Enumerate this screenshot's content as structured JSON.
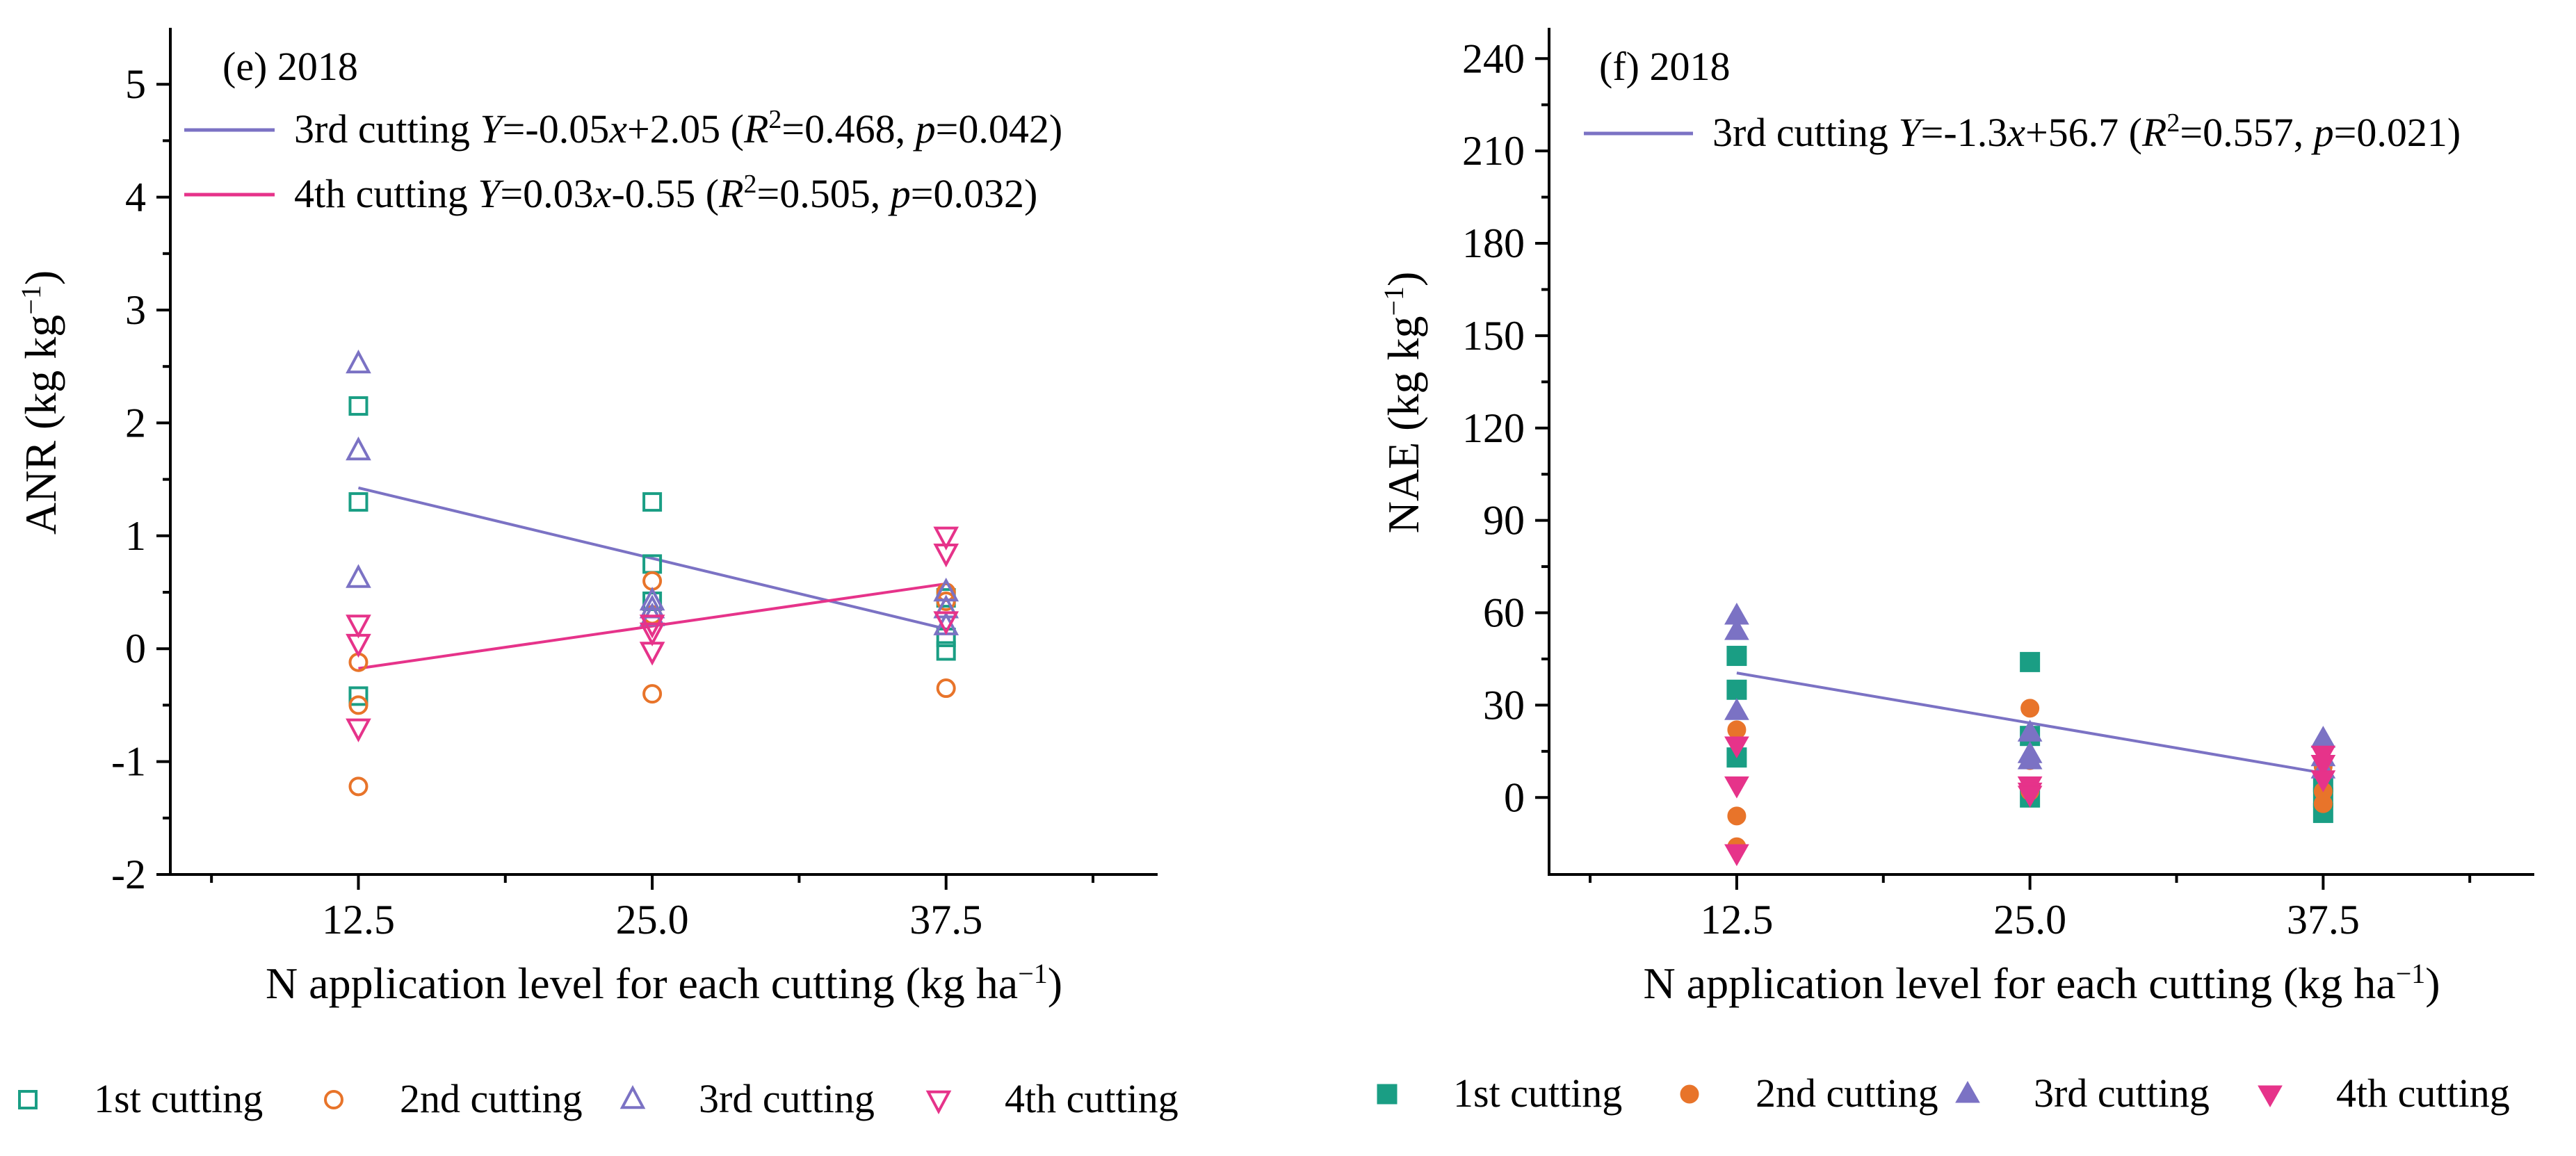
{
  "chart_data": [
    {
      "type": "scatter",
      "panel_label": "(e) 2018",
      "ylabel": "ANR (kg kg",
      "ylabel_sup": "−1",
      "ylabel_close": ")",
      "xlabel": "N application level for each cutting (kg ha",
      "xlabel_sup": "−1",
      "xlabel_close": ")",
      "xlim": [
        4.5,
        46.5
      ],
      "ylim": [
        -2,
        5.5
      ],
      "xticks": [
        12.5,
        25.0,
        37.5
      ],
      "xtick_labels": [
        "12.5",
        "25.0",
        "37.5"
      ],
      "yticks": [
        -2,
        -1,
        0,
        1,
        2,
        3,
        4,
        5
      ],
      "ytick_labels": [
        "-2",
        "-1",
        "0",
        "1",
        "2",
        "3",
        "4",
        "5"
      ],
      "marker_fill": "open",
      "series": [
        {
          "name": "1st cutting",
          "marker": "square",
          "color": "#1a9e84",
          "x": [
            12.5,
            12.5,
            12.5,
            25.0,
            25.0,
            25.0,
            37.5,
            37.5,
            37.5
          ],
          "y": [
            2.15,
            1.3,
            -0.42,
            1.3,
            0.75,
            0.42,
            0.1,
            -0.02,
            0.45
          ]
        },
        {
          "name": "2nd cutting",
          "marker": "circle",
          "color": "#e8742a",
          "x": [
            12.5,
            12.5,
            12.5,
            25.0,
            25.0,
            25.0,
            37.5,
            37.5,
            37.5
          ],
          "y": [
            -0.12,
            -0.5,
            -1.22,
            0.6,
            0.3,
            -0.4,
            0.5,
            0.42,
            -0.35
          ]
        },
        {
          "name": "3rd cutting",
          "marker": "triangle-up",
          "color": "#7b72c4",
          "x": [
            12.5,
            12.5,
            12.5,
            25.0,
            25.0,
            25.0,
            37.5,
            37.5,
            37.5
          ],
          "y": [
            2.52,
            1.75,
            0.62,
            0.42,
            0.35,
            0.28,
            0.5,
            0.35,
            0.2
          ]
        },
        {
          "name": "4th cutting",
          "marker": "triangle-down",
          "color": "#e6338a",
          "x": [
            12.5,
            12.5,
            12.5,
            25.0,
            25.0,
            25.0,
            37.5,
            37.5,
            37.5
          ],
          "y": [
            0.22,
            0.05,
            -0.7,
            0.22,
            0.15,
            -0.02,
            1.0,
            0.85,
            0.25
          ]
        }
      ],
      "fits": [
        {
          "name": "3rd cutting",
          "color": "#7b72c4",
          "slope": -0.05,
          "intercept": 2.05,
          "x_range": [
            12.5,
            37.5
          ],
          "label": "3rd cutting",
          "y_var": "Y",
          "eq_rhs_a": "=-0.05",
          "x_var": "x",
          "eq_rhs_b": "+2.05 (",
          "r_var": "R",
          "r_sup": "2",
          "r_val": "=0.468, ",
          "p_var": "p",
          "p_val": "=0.042)"
        },
        {
          "name": "4th cutting",
          "color": "#e6338a",
          "slope": 0.03,
          "intercept": -0.55,
          "x_range": [
            12.5,
            37.5
          ],
          "label": "4th cutting",
          "y_var": "Y",
          "eq_rhs_a": "=0.03",
          "x_var": "x",
          "eq_rhs_b": "-0.55 (",
          "r_var": "R",
          "r_sup": "2",
          "r_val": "=0.505, ",
          "p_var": "p",
          "p_val": "=0.032)"
        }
      ],
      "legend": [
        "1st cutting",
        "2nd cutting",
        "3rd cutting",
        "4th cutting"
      ]
    },
    {
      "type": "scatter",
      "panel_label": "(f) 2018",
      "ylabel": "NAE (kg kg",
      "ylabel_sup": "−1",
      "ylabel_close": ")",
      "xlabel": "N application level for each cutting (kg ha",
      "xlabel_sup": "−1",
      "xlabel_close": ")",
      "xlim": [
        4.5,
        46.5
      ],
      "ylim": [
        -25,
        250
      ],
      "xticks": [
        12.5,
        25.0,
        37.5
      ],
      "xtick_labels": [
        "12.5",
        "25.0",
        "37.5"
      ],
      "yticks": [
        0,
        30,
        60,
        90,
        120,
        150,
        180,
        210,
        240
      ],
      "ytick_labels": [
        "0",
        "30",
        "60",
        "90",
        "120",
        "150",
        "180",
        "210",
        "240"
      ],
      "marker_fill": "solid",
      "series": [
        {
          "name": "1st cutting",
          "marker": "square",
          "color": "#1a9e84",
          "x": [
            12.5,
            12.5,
            12.5,
            25.0,
            25.0,
            25.0,
            37.5,
            37.5,
            37.5
          ],
          "y": [
            46,
            35,
            13,
            44,
            20,
            0,
            5,
            0,
            -5
          ]
        },
        {
          "name": "2nd cutting",
          "marker": "circle",
          "color": "#e8742a",
          "x": [
            12.5,
            12.5,
            12.5,
            25.0,
            25.0,
            25.0,
            37.5,
            37.5,
            37.5
          ],
          "y": [
            22,
            -6,
            -16,
            29,
            12,
            2,
            10,
            2,
            -2
          ]
        },
        {
          "name": "3rd cutting",
          "marker": "triangle-up",
          "color": "#7b72c4",
          "x": [
            12.5,
            12.5,
            12.5,
            25.0,
            25.0,
            25.0,
            37.5,
            37.5,
            37.5
          ],
          "y": [
            59,
            54,
            28,
            21,
            14,
            12,
            19,
            13,
            9
          ]
        },
        {
          "name": "4th cutting",
          "marker": "triangle-down",
          "color": "#e6338a",
          "x": [
            12.5,
            12.5,
            12.5,
            25.0,
            25.0,
            25.0,
            37.5,
            37.5,
            37.5
          ],
          "y": [
            17,
            4,
            -18,
            4,
            2,
            1,
            14,
            11,
            6
          ]
        }
      ],
      "fits": [
        {
          "name": "3rd cutting",
          "color": "#7b72c4",
          "slope": -1.3,
          "intercept": 56.7,
          "x_range": [
            12.5,
            37.5
          ],
          "label": "3rd cutting",
          "y_var": "Y",
          "eq_rhs_a": "=-1.3",
          "x_var": "x",
          "eq_rhs_b": "+56.7 (",
          "r_var": "R",
          "r_sup": "2",
          "r_val": "=0.557, ",
          "p_var": "p",
          "p_val": "=0.021)"
        }
      ],
      "legend": [
        "1st cutting",
        "2nd cutting",
        "3rd cutting",
        "4th cutting"
      ]
    }
  ]
}
